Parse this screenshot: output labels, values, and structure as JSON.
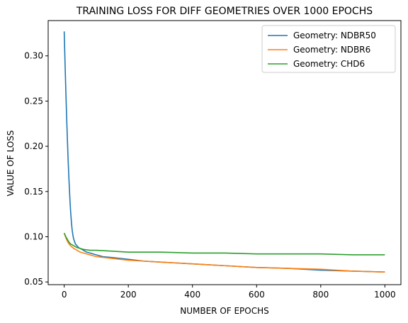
{
  "chart_data": {
    "type": "line",
    "title": "TRAINING LOSS FOR DIFF GEOMETRIES OVER 1000 EPOCHS",
    "xlabel": "NUMBER OF EPOCHS",
    "ylabel": "VALUE OF LOSS",
    "xlim": [
      -50,
      1050
    ],
    "ylim": [
      0.047,
      0.339
    ],
    "xticks": [
      0,
      200,
      400,
      600,
      800,
      1000
    ],
    "yticks": [
      0.05,
      0.1,
      0.15,
      0.2,
      0.25,
      0.3
    ],
    "xtick_labels": [
      "0",
      "200",
      "400",
      "600",
      "800",
      "1000"
    ],
    "ytick_labels": [
      "0.05",
      "0.10",
      "0.15",
      "0.20",
      "0.25",
      "0.30"
    ],
    "legend_position": "top-right",
    "grid": false,
    "series": [
      {
        "name": "Geometry: NDBR50",
        "color": "#1f77b4",
        "x": [
          0,
          2,
          5,
          8,
          10,
          12,
          15,
          18,
          20,
          23,
          25,
          28,
          30,
          35,
          40,
          45,
          50,
          60,
          70,
          80,
          100,
          120,
          150,
          200,
          250,
          300,
          400,
          500,
          600,
          700,
          800,
          900,
          1000
        ],
        "y": [
          0.327,
          0.3,
          0.262,
          0.228,
          0.207,
          0.187,
          0.162,
          0.14,
          0.128,
          0.114,
          0.107,
          0.1,
          0.097,
          0.092,
          0.09,
          0.088,
          0.087,
          0.085,
          0.083,
          0.082,
          0.08,
          0.078,
          0.077,
          0.075,
          0.073,
          0.072,
          0.07,
          0.068,
          0.066,
          0.065,
          0.063,
          0.062,
          0.061
        ]
      },
      {
        "name": "Geometry: NDBR6",
        "color": "#ff7f0e",
        "x": [
          0,
          5,
          10,
          15,
          20,
          30,
          40,
          50,
          60,
          80,
          100,
          150,
          200,
          250,
          300,
          400,
          500,
          600,
          700,
          800,
          900,
          1000
        ],
        "y": [
          0.104,
          0.099,
          0.095,
          0.092,
          0.09,
          0.087,
          0.085,
          0.083,
          0.082,
          0.08,
          0.078,
          0.076,
          0.074,
          0.073,
          0.072,
          0.07,
          0.068,
          0.066,
          0.065,
          0.064,
          0.062,
          0.061
        ]
      },
      {
        "name": "Geometry: CHD6",
        "color": "#2ca02c",
        "x": [
          0,
          5,
          10,
          15,
          20,
          30,
          40,
          50,
          60,
          80,
          100,
          150,
          200,
          300,
          400,
          500,
          600,
          700,
          800,
          900,
          1000
        ],
        "y": [
          0.104,
          0.1,
          0.097,
          0.094,
          0.092,
          0.09,
          0.088,
          0.087,
          0.086,
          0.085,
          0.085,
          0.084,
          0.083,
          0.083,
          0.082,
          0.082,
          0.081,
          0.081,
          0.081,
          0.08,
          0.08
        ]
      }
    ]
  }
}
